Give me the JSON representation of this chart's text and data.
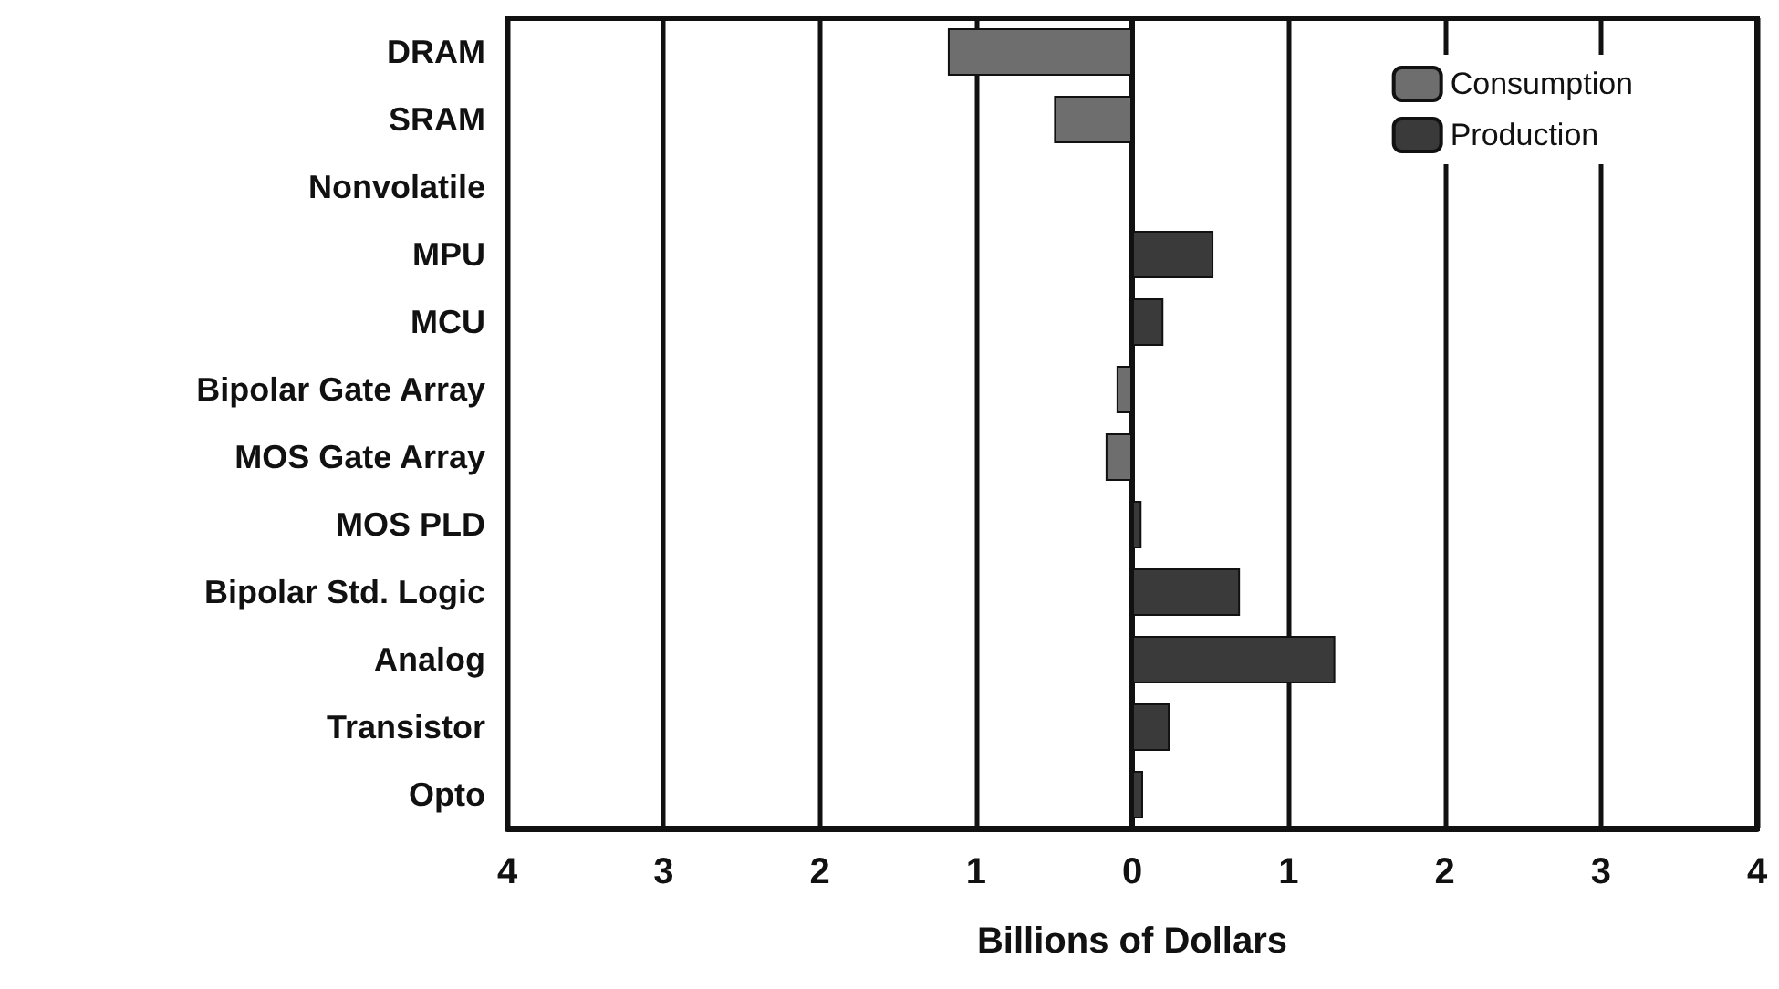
{
  "chart_data": {
    "type": "bar",
    "orientation": "horizontal",
    "xlabel": "Billions of Dollars",
    "categories": [
      "DRAM",
      "SRAM",
      "Nonvolatile",
      "MPU",
      "MCU",
      "Bipolar Gate Array",
      "MOS Gate Array",
      "MOS PLD",
      "Bipolar Std. Logic",
      "Analog",
      "Transistor",
      "Opto"
    ],
    "series": [
      {
        "name": "Consumption",
        "color": "#6e6e6e",
        "values": [
          -1.18,
          -0.5,
          null,
          null,
          null,
          -0.1,
          -0.17,
          null,
          null,
          null,
          null,
          null
        ]
      },
      {
        "name": "Production",
        "color": "#3a3a3a",
        "values": [
          null,
          null,
          null,
          0.52,
          0.2,
          null,
          null,
          0.06,
          0.69,
          1.3,
          0.24,
          0.07
        ]
      }
    ],
    "xlim": [
      -4,
      4
    ],
    "xticks": [
      {
        "value": -4,
        "label": "4"
      },
      {
        "value": -3,
        "label": "3"
      },
      {
        "value": -2,
        "label": "2"
      },
      {
        "value": -1,
        "label": "1"
      },
      0,
      1,
      2,
      3,
      4
    ],
    "grid": "x",
    "legend": "top right"
  }
}
